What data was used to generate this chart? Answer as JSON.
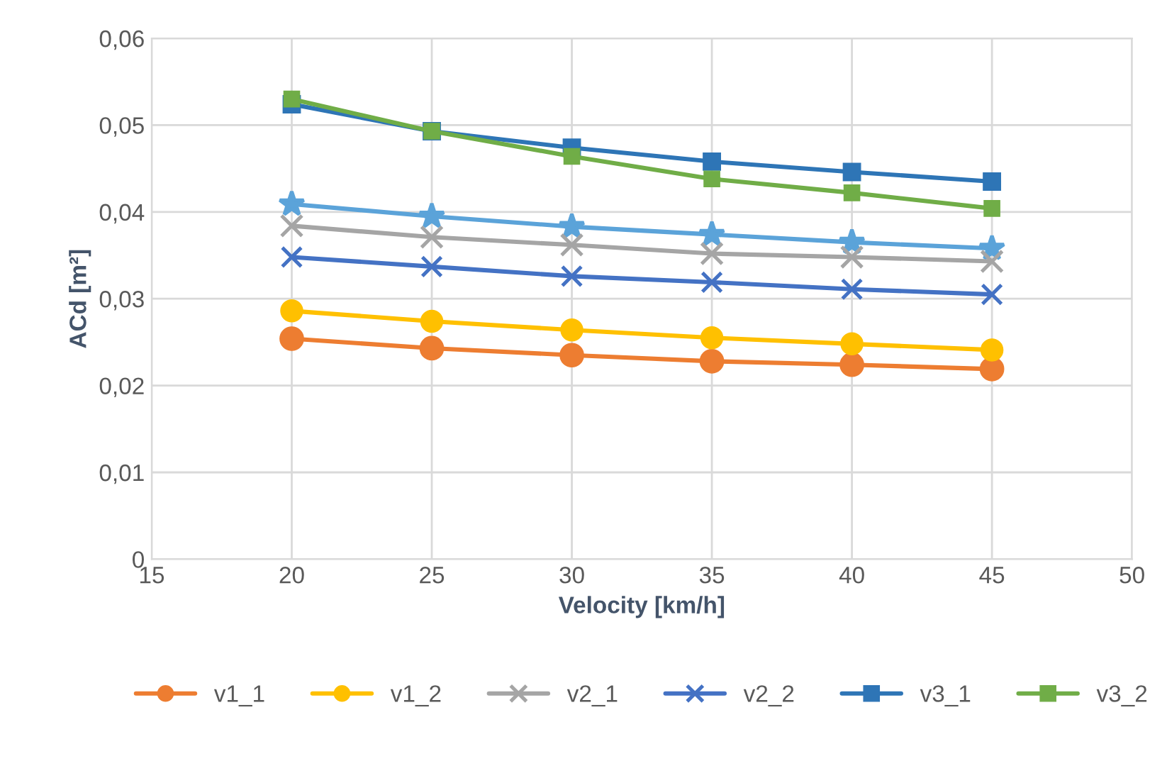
{
  "chart_data": {
    "type": "line",
    "xlabel": "Velocity [km/h]",
    "ylabel": "ACd [m²]",
    "x": [
      20,
      25,
      30,
      35,
      40,
      45
    ],
    "xlim": [
      15,
      50
    ],
    "xticks": [
      15,
      20,
      25,
      30,
      35,
      40,
      45,
      50
    ],
    "ylim": [
      0,
      0.06
    ],
    "yticks": [
      0,
      {
        "value": 0.01,
        "label": "0,01"
      },
      {
        "value": 0.02,
        "label": "0,02"
      },
      {
        "value": 0.03,
        "label": "0,03"
      },
      {
        "value": 0.04,
        "label": "0,04"
      },
      {
        "value": 0.05,
        "label": "0,05"
      },
      {
        "value": 0.06,
        "label": "0,06"
      }
    ],
    "grid": true,
    "legend": "bottom",
    "line_style": "solid",
    "series": [
      {
        "color": "#5ba3d9",
        "marker": "star",
        "values": [
          0.0409,
          0.0395,
          0.0383,
          0.0374,
          0.0365,
          0.0358
        ]
      },
      {
        "name": "v1_1",
        "color": "#ed7d31",
        "marker": "circle",
        "values": [
          0.0254,
          0.0243,
          0.0235,
          0.0228,
          0.0224,
          0.0219
        ]
      },
      {
        "name": "v1_2",
        "color": "#ffc000",
        "marker": "circle",
        "values": [
          0.0286,
          0.0274,
          0.0264,
          0.0255,
          0.0248,
          0.0241
        ]
      },
      {
        "name": "v2_1",
        "color": "#a5a5a5",
        "marker": "cross",
        "values": [
          0.0384,
          0.0371,
          0.0362,
          0.0352,
          0.0348,
          0.0343
        ]
      },
      {
        "name": "v2_2",
        "color": "#4472c4",
        "marker": "cross",
        "values": [
          0.0348,
          0.0337,
          0.0326,
          0.0319,
          0.0311,
          0.0305
        ]
      },
      {
        "name": "v3_1",
        "color": "#2e75b6",
        "marker": "square",
        "values": [
          0.0524,
          0.0493,
          0.0474,
          0.0458,
          0.0446,
          0.0435
        ]
      },
      {
        "name": "v3_2",
        "color": "#70ad47",
        "marker": "square",
        "values": [
          0.053,
          0.0493,
          0.0464,
          0.0438,
          0.0422,
          0.0404
        ]
      }
    ]
  }
}
